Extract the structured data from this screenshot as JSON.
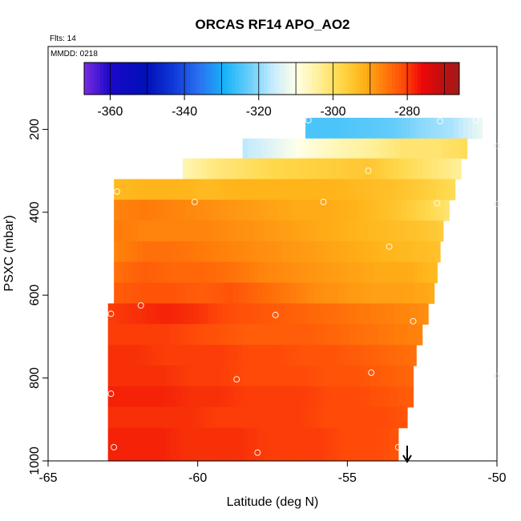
{
  "chart_data": {
    "type": "heatmap",
    "title": "ORCAS RF14 APO_AO2",
    "annotations": {
      "flights": "Flts: 14",
      "date": "MMDD: 0218"
    },
    "xlabel": "Latitude (deg N)",
    "ylabel": "PSXC (mbar)",
    "xlim": [
      -65,
      -50
    ],
    "ylim": [
      1000,
      0
    ],
    "x_ticks": [
      -65,
      -60,
      -55,
      -50
    ],
    "x_tick_labels": [
      "-65",
      "-60",
      "-55",
      "-50"
    ],
    "y_ticks": [
      200,
      400,
      600,
      800,
      1000
    ],
    "y_tick_labels": [
      "200",
      "400",
      "600",
      "800",
      "1000"
    ],
    "colorbar": {
      "range": [
        -367,
        -266
      ],
      "ticks": [
        -360,
        -340,
        -320,
        -300,
        -280
      ],
      "tick_labels": [
        "-360",
        "-340",
        "-320",
        "-300",
        "-280"
      ],
      "colormap": [
        [
          -367,
          "#7a2be0"
        ],
        [
          -360,
          "#1a08c8"
        ],
        [
          -350,
          "#0010b8"
        ],
        [
          -343,
          "#1038d8"
        ],
        [
          -336,
          "#2a72f0"
        ],
        [
          -329,
          "#18b4f8"
        ],
        [
          -322,
          "#70d0fa"
        ],
        [
          -316,
          "#c8ecfd"
        ],
        [
          -310,
          "#ffffe8"
        ],
        [
          -304,
          "#fff09a"
        ],
        [
          -298,
          "#ffd84a"
        ],
        [
          -292,
          "#ffb41a"
        ],
        [
          -286,
          "#ff7a0a"
        ],
        [
          -281,
          "#ff4a08"
        ],
        [
          -276,
          "#ee0808"
        ],
        [
          -271,
          "#c20e0e"
        ],
        [
          -266,
          "#a21a1a"
        ]
      ]
    },
    "bands": [
      {
        "p_top": 172,
        "p_bot": 222,
        "lat_min": -56.4,
        "lat_max": -50.5,
        "values": [
          -325,
          -325,
          -324,
          -323,
          -320,
          -318,
          -312
        ]
      },
      {
        "p_top": 222,
        "p_bot": 270,
        "lat_min": -58.5,
        "lat_max": -51.0,
        "values": [
          -317,
          -313,
          -309,
          -306,
          -304,
          -301,
          -301,
          -299
        ]
      },
      {
        "p_top": 270,
        "p_bot": 320,
        "lat_min": -60.5,
        "lat_max": -51.2,
        "values": [
          -306,
          -302,
          -300,
          -298,
          -297,
          -296,
          -295,
          -298,
          -301,
          -304
        ]
      },
      {
        "p_top": 320,
        "p_bot": 370,
        "lat_min": -62.8,
        "lat_max": -51.4,
        "values": [
          -293,
          -292,
          -292,
          -293,
          -292,
          -292,
          -292,
          -292,
          -293,
          -294,
          -296,
          -299
        ]
      },
      {
        "p_top": 370,
        "p_bot": 420,
        "lat_min": -62.8,
        "lat_max": -51.6,
        "values": [
          -287,
          -286,
          -287,
          -288,
          -289,
          -290,
          -291,
          -291,
          -292,
          -294,
          -297,
          -301
        ]
      },
      {
        "p_top": 420,
        "p_bot": 470,
        "lat_min": -62.8,
        "lat_max": -51.8,
        "values": [
          -286,
          -287,
          -287,
          -287,
          -288,
          -289,
          -290,
          -291,
          -292,
          -293,
          -294,
          -296
        ]
      },
      {
        "p_top": 470,
        "p_bot": 520,
        "lat_min": -62.8,
        "lat_max": -51.9,
        "values": [
          -287,
          -285,
          -285,
          -286,
          -287,
          -288,
          -289,
          -290,
          -291,
          -292,
          -293,
          -294
        ]
      },
      {
        "p_top": 520,
        "p_bot": 570,
        "lat_min": -62.8,
        "lat_max": -52.0,
        "values": [
          -285,
          -283,
          -284,
          -284,
          -285,
          -287,
          -288,
          -289,
          -290,
          -291,
          -291,
          -293
        ]
      },
      {
        "p_top": 570,
        "p_bot": 620,
        "lat_min": -62.8,
        "lat_max": -52.1,
        "values": [
          -283,
          -282,
          -282,
          -283,
          -282,
          -284,
          -286,
          -288,
          -289,
          -290,
          -290,
          -291
        ]
      },
      {
        "p_top": 620,
        "p_bot": 670,
        "lat_min": -63.0,
        "lat_max": -52.3,
        "values": [
          -280,
          -279,
          -278,
          -279,
          -281,
          -282,
          -283,
          -284,
          -285,
          -286,
          -287,
          -288
        ]
      },
      {
        "p_top": 670,
        "p_bot": 720,
        "lat_min": -63.0,
        "lat_max": -52.5,
        "values": [
          -280,
          -280,
          -280,
          -281,
          -282,
          -283,
          -283,
          -283,
          -284,
          -285,
          -286,
          -287
        ]
      },
      {
        "p_top": 720,
        "p_bot": 770,
        "lat_min": -63.0,
        "lat_max": -52.7,
        "values": [
          -279,
          -279,
          -280,
          -280,
          -280,
          -281,
          -281,
          -282,
          -282,
          -283,
          -284,
          -285
        ]
      },
      {
        "p_top": 770,
        "p_bot": 820,
        "lat_min": -63.0,
        "lat_max": -52.8,
        "values": [
          -279,
          -279,
          -279,
          -280,
          -280,
          -281,
          -281,
          -281,
          -282,
          -282,
          -283,
          -284
        ]
      },
      {
        "p_top": 820,
        "p_bot": 870,
        "lat_min": -63.0,
        "lat_max": -52.8,
        "values": [
          -278,
          -278,
          -278,
          -279,
          -279,
          -280,
          -280,
          -280,
          -281,
          -281,
          -282,
          -283
        ]
      },
      {
        "p_top": 870,
        "p_bot": 920,
        "lat_min": -63.0,
        "lat_max": -53.0,
        "values": [
          -279,
          -279,
          -279,
          -279,
          -280,
          -280,
          -280,
          -280,
          -281,
          -281,
          -281,
          -282
        ]
      },
      {
        "p_top": 920,
        "p_bot": 1000,
        "lat_min": -63.0,
        "lat_max": -53.3,
        "values": [
          -278,
          -278,
          -278,
          -279,
          -279,
          -279,
          -280,
          -280,
          -280,
          -281,
          -281,
          -282
        ]
      }
    ],
    "sample_points": [
      {
        "lat": -56.3,
        "p": 178
      },
      {
        "lat": -51.9,
        "p": 180
      },
      {
        "lat": -50.7,
        "p": 178
      },
      {
        "lat": -54.3,
        "p": 300
      },
      {
        "lat": -62.7,
        "p": 350
      },
      {
        "lat": -60.1,
        "p": 375
      },
      {
        "lat": -55.8,
        "p": 375
      },
      {
        "lat": -52.0,
        "p": 378
      },
      {
        "lat": -53.6,
        "p": 483
      },
      {
        "lat": -61.9,
        "p": 625
      },
      {
        "lat": -62.9,
        "p": 645
      },
      {
        "lat": -57.4,
        "p": 648
      },
      {
        "lat": -52.8,
        "p": 663
      },
      {
        "lat": -54.2,
        "p": 787
      },
      {
        "lat": -58.7,
        "p": 803
      },
      {
        "lat": -62.9,
        "p": 838
      },
      {
        "lat": -62.8,
        "p": 967
      },
      {
        "lat": -53.3,
        "p": 967
      },
      {
        "lat": -58.0,
        "p": 980
      }
    ],
    "edge_markers": [
      {
        "lat": -50.0,
        "p": 240
      },
      {
        "lat": -50.0,
        "p": 380
      },
      {
        "lat": -50.0,
        "p": 795
      }
    ],
    "arrow_marker": {
      "lat": -53.0,
      "direction": "down"
    }
  }
}
